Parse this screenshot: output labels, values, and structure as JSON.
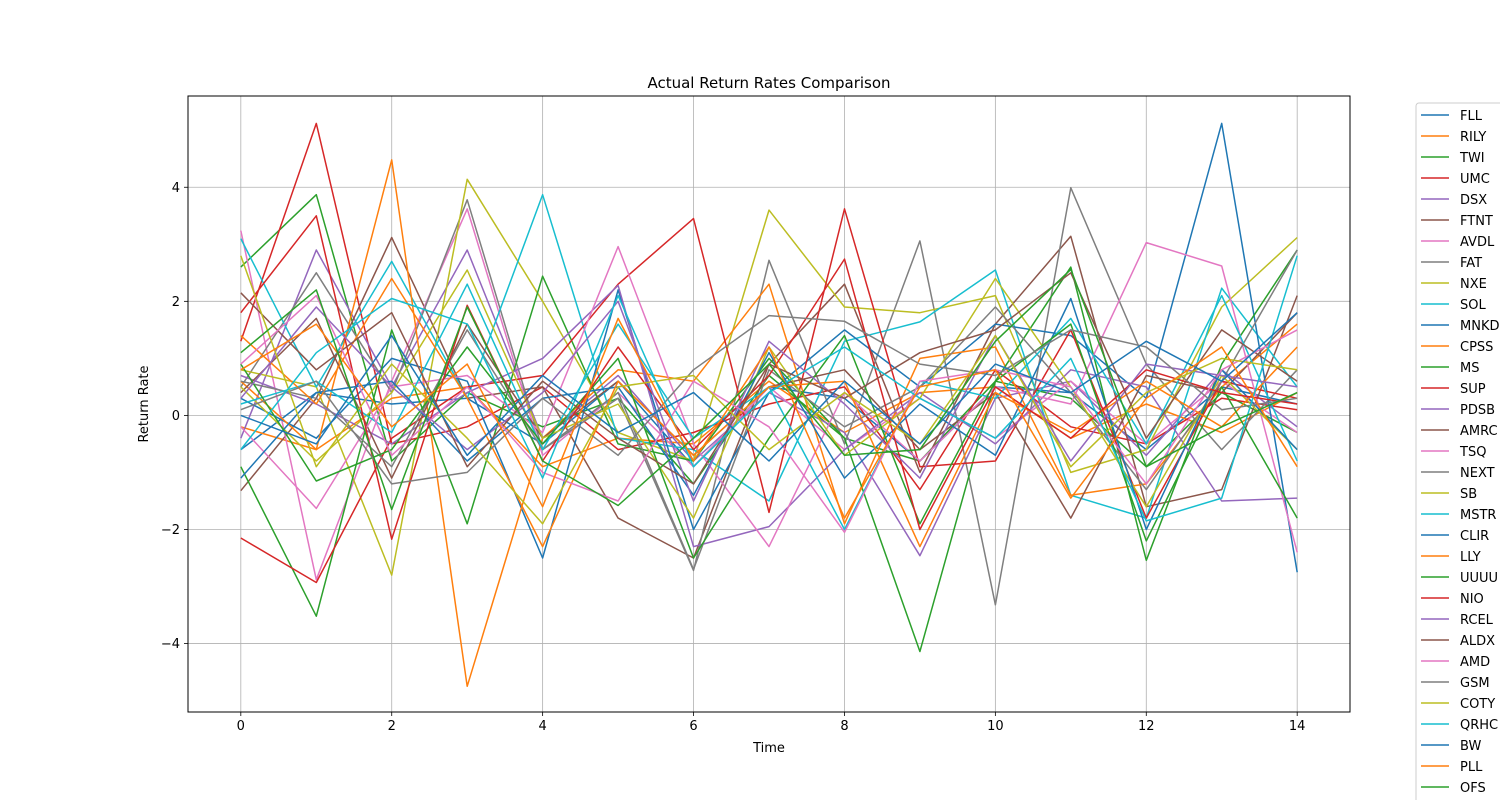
{
  "chart_data": {
    "type": "line",
    "title": "Actual Return Rates Comparison",
    "xlabel": "Time",
    "ylabel": "Return Rate",
    "xlim": [
      -0.7,
      14.7
    ],
    "ylim": [
      -5.2,
      5.6
    ],
    "x_ticks": [
      0,
      2,
      4,
      6,
      8,
      10,
      12,
      14
    ],
    "y_ticks": [
      -4,
      -2,
      0,
      2,
      4
    ],
    "y_tick_labels": [
      "−4",
      "−2",
      "0",
      "2",
      "4"
    ],
    "grid": true,
    "legend_position": "outside-right",
    "x": [
      0,
      1,
      2,
      3,
      4,
      5,
      6,
      7,
      8,
      9,
      10,
      11,
      12,
      13,
      14
    ],
    "series": [
      {
        "name": "FLL",
        "color": "#1f77b4",
        "values": [
          -0.6,
          0.4,
          0.2,
          0.3,
          -0.5,
          0.6,
          -0.9,
          0.5,
          0.3,
          -0.8,
          0.5,
          0.4,
          -0.6,
          0.5,
          0.2
        ]
      },
      {
        "name": "RILY",
        "color": "#ff7f0e",
        "values": [
          -0.2,
          -0.6,
          0.3,
          0.5,
          -0.9,
          -0.4,
          -0.5,
          0.6,
          -0.3,
          0.4,
          0.5,
          -0.4,
          0.2,
          -0.3,
          0.4
        ]
      },
      {
        "name": "TWI",
        "color": "#2ca02c",
        "values": [
          2.6,
          3.87,
          -0.8,
          0.4,
          -0.2,
          0.3,
          -1.2,
          0.7,
          -0.4,
          -0.8,
          0.6,
          0.3,
          -0.9,
          0.4,
          -0.3
        ]
      },
      {
        "name": "UMC",
        "color": "#d62728",
        "values": [
          1.3,
          5.12,
          -0.5,
          -0.2,
          0.5,
          -0.6,
          -0.3,
          0.2,
          0.5,
          -1.3,
          0.8,
          -0.2,
          -0.5,
          0.3,
          0.1
        ]
      },
      {
        "name": "DSX",
        "color": "#9467bd",
        "values": [
          -0.4,
          2.9,
          0.5,
          2.9,
          -0.4,
          0.7,
          -0.8,
          0.4,
          -0.3,
          -2.46,
          0.3,
          0.6,
          -0.7,
          0.8,
          -0.2
        ]
      },
      {
        "name": "FTNT",
        "color": "#8c564b",
        "values": [
          -1.32,
          0.3,
          3.12,
          0.3,
          0.5,
          -1.8,
          -2.5,
          0.9,
          2.3,
          -1.0,
          1.6,
          3.14,
          -1.6,
          -1.3,
          2.1
        ]
      },
      {
        "name": "AVDL",
        "color": "#e377c2",
        "values": [
          3.24,
          -2.88,
          0.6,
          3.62,
          -0.7,
          0.4,
          -0.9,
          0.5,
          -0.6,
          0.3,
          -0.4,
          0.6,
          -0.5,
          0.6,
          -0.3
        ]
      },
      {
        "name": "FAT",
        "color": "#7f7f7f",
        "values": [
          0.5,
          2.5,
          0.4,
          3.78,
          -0.6,
          0.3,
          -2.72,
          2.72,
          -0.5,
          3.06,
          -3.32,
          3.99,
          0.9,
          -0.6,
          0.8
        ]
      },
      {
        "name": "NXE",
        "color": "#bcbd22",
        "values": [
          0.8,
          0.5,
          -2.8,
          4.14,
          2.0,
          -0.3,
          -0.8,
          3.6,
          1.9,
          1.8,
          2.1,
          -1.0,
          -0.6,
          1.9,
          3.12
        ]
      },
      {
        "name": "SOL",
        "color": "#17becf",
        "values": [
          3.1,
          0.5,
          2.7,
          0.3,
          3.87,
          -0.4,
          -0.6,
          -1.5,
          1.3,
          1.64,
          2.55,
          -1.4,
          -1.8,
          2.23,
          0.5
        ]
      },
      {
        "name": "MNKD",
        "color": "#1f77b4",
        "values": [
          0.3,
          -0.4,
          1.0,
          0.6,
          -2.5,
          2.2,
          -2.0,
          0.4,
          1.5,
          0.5,
          1.6,
          1.4,
          0.3,
          5.12,
          -2.75
        ]
      },
      {
        "name": "CPSS",
        "color": "#ff7f0e",
        "values": [
          0.6,
          -0.6,
          4.48,
          -4.75,
          -0.4,
          0.8,
          0.6,
          2.3,
          -1.9,
          1.0,
          1.2,
          -1.4,
          -1.2,
          0.5,
          1.6
        ]
      },
      {
        "name": "MS",
        "color": "#2ca02c",
        "values": [
          -0.9,
          -3.52,
          1.5,
          -1.9,
          2.44,
          -0.5,
          -0.8,
          1.0,
          -0.4,
          -4.14,
          0.6,
          2.6,
          -2.54,
          0.9,
          2.9
        ]
      },
      {
        "name": "SUP",
        "color": "#d62728",
        "values": [
          -2.15,
          -2.93,
          -0.4,
          0.5,
          0.7,
          2.3,
          3.45,
          -1.7,
          3.62,
          -0.9,
          -0.8,
          1.5,
          -1.8,
          0.6,
          0.3
        ]
      },
      {
        "name": "PDSB",
        "color": "#9467bd",
        "values": [
          0.7,
          0.2,
          -0.5,
          0.4,
          1.0,
          2.28,
          -2.3,
          -1.95,
          -0.6,
          0.4,
          -0.5,
          0.8,
          0.5,
          -1.5,
          -1.45
        ]
      },
      {
        "name": "AMRC",
        "color": "#8c564b",
        "values": [
          0.4,
          1.7,
          -1.1,
          1.6,
          -0.4,
          0.6,
          -0.7,
          0.5,
          0.8,
          -0.6,
          0.4,
          -1.8,
          0.7,
          0.4,
          1.8
        ]
      },
      {
        "name": "TSQ",
        "color": "#e377c2",
        "values": [
          -0.2,
          -1.63,
          0.5,
          0.7,
          -0.3,
          2.96,
          -0.5,
          -2.3,
          0.4,
          -0.8,
          0.5,
          0.2,
          3.03,
          2.62,
          -2.4
        ]
      },
      {
        "name": "NEXT",
        "color": "#7f7f7f",
        "values": [
          0.6,
          0.3,
          -0.9,
          1.5,
          -0.6,
          0.4,
          -2.7,
          0.8,
          -0.2,
          0.5,
          1.9,
          0.4,
          -1.3,
          0.6,
          2.9
        ]
      },
      {
        "name": "SB",
        "color": "#bcbd22",
        "values": [
          0.5,
          -0.8,
          0.4,
          2.55,
          -0.4,
          0.2,
          -1.8,
          1.2,
          -0.7,
          0.3,
          2.4,
          0.5,
          -1.6,
          0.7,
          -0.6
        ]
      },
      {
        "name": "MSTR",
        "color": "#17becf",
        "values": [
          0.2,
          0.6,
          -0.3,
          2.3,
          -0.6,
          1.6,
          -0.4,
          0.5,
          -2.0,
          0.6,
          0.3,
          1.7,
          -0.5,
          2.1,
          -0.8
        ]
      },
      {
        "name": "CLIR",
        "color": "#1f77b4",
        "values": [
          -1.1,
          0.4,
          0.6,
          -0.8,
          0.3,
          0.5,
          -1.4,
          1.1,
          -1.1,
          0.2,
          -0.7,
          2.05,
          -2.0,
          0.8,
          -0.6
        ]
      },
      {
        "name": "LLY",
        "color": "#ff7f0e",
        "values": [
          1.4,
          0.2,
          2.4,
          0.3,
          -2.3,
          0.6,
          -0.7,
          0.5,
          0.6,
          -2.3,
          0.4,
          -0.3,
          0.6,
          -0.2,
          1.2
        ]
      },
      {
        "name": "UUUU",
        "color": "#2ca02c",
        "values": [
          0.9,
          -1.15,
          -0.6,
          1.2,
          -0.5,
          1.0,
          -2.5,
          -0.4,
          1.4,
          -1.9,
          0.6,
          1.6,
          -2.2,
          0.5,
          -1.8
        ]
      },
      {
        "name": "NIO",
        "color": "#d62728",
        "values": [
          1.8,
          3.5,
          -2.17,
          1.93,
          -0.8,
          1.2,
          -0.6,
          0.7,
          2.74,
          -2.0,
          0.5,
          -0.4,
          0.8,
          0.4,
          0.2
        ]
      },
      {
        "name": "RCEL",
        "color": "#9467bd",
        "values": [
          0.3,
          1.9,
          0.5,
          -0.6,
          0.4,
          2.0,
          -1.5,
          1.3,
          0.2,
          -1.1,
          1.4,
          -0.8,
          0.9,
          0.7,
          0.5
        ]
      },
      {
        "name": "ALDX",
        "color": "#8c564b",
        "values": [
          2.15,
          0.8,
          1.8,
          -0.9,
          0.6,
          -0.4,
          -1.2,
          0.9,
          0.3,
          1.1,
          1.5,
          2.5,
          -0.4,
          1.5,
          0.6
        ]
      },
      {
        "name": "AMD",
        "color": "#e377c2",
        "values": [
          0.9,
          2.1,
          -0.7,
          0.5,
          -1.0,
          -1.5,
          0.6,
          -0.2,
          -2.05,
          0.6,
          0.8,
          0.5,
          -1.2,
          0.8,
          1.5
        ]
      },
      {
        "name": "GSM",
        "color": "#7f7f7f",
        "values": [
          0.1,
          0.6,
          -1.2,
          -1.0,
          0.3,
          -0.7,
          0.8,
          1.75,
          1.65,
          0.9,
          0.7,
          1.5,
          1.2,
          0.1,
          0.3
        ]
      },
      {
        "name": "COTY",
        "color": "#bcbd22",
        "values": [
          2.8,
          -0.9,
          0.9,
          -0.4,
          -1.9,
          0.5,
          0.7,
          -0.6,
          0.4,
          -0.5,
          1.4,
          -0.9,
          0.4,
          1.0,
          0.8
        ]
      },
      {
        "name": "QRHC",
        "color": "#17becf",
        "values": [
          -0.6,
          1.1,
          2.05,
          1.6,
          -1.1,
          2.1,
          -0.9,
          0.4,
          1.2,
          0.3,
          -0.4,
          1.0,
          -1.85,
          -1.45,
          2.8
        ]
      },
      {
        "name": "BW",
        "color": "#1f77b4",
        "values": [
          0.0,
          -0.5,
          1.4,
          -0.7,
          0.7,
          -0.3,
          0.4,
          -0.8,
          0.6,
          -0.5,
          0.9,
          0.4,
          1.3,
          0.6,
          1.8
        ]
      },
      {
        "name": "PLL",
        "color": "#ff7f0e",
        "values": [
          0.8,
          1.6,
          -0.2,
          0.9,
          -1.6,
          1.7,
          -0.8,
          1.2,
          -1.8,
          0.5,
          0.8,
          -1.45,
          0.3,
          1.2,
          -0.9
        ]
      },
      {
        "name": "OFS",
        "color": "#2ca02c",
        "values": [
          1.1,
          2.2,
          -1.65,
          1.9,
          -0.8,
          -1.58,
          -0.4,
          0.9,
          -0.7,
          -0.6,
          1.3,
          2.56,
          -0.9,
          -0.2,
          0.4
        ]
      }
    ]
  }
}
